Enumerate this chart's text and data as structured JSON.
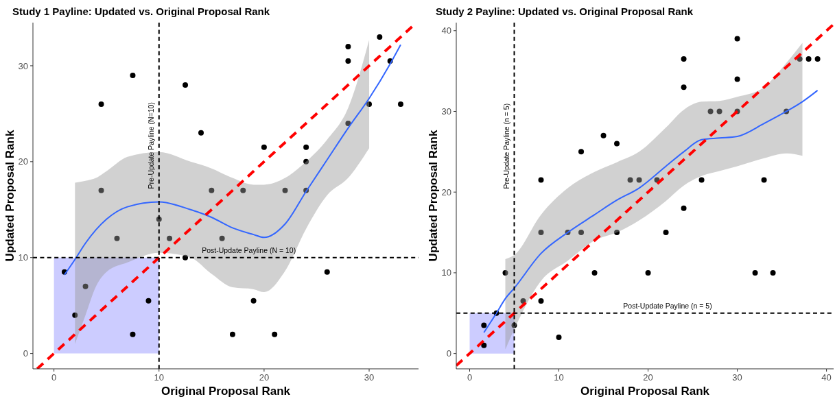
{
  "chart_data": [
    {
      "type": "scatter",
      "title": "Study 1 Payline: Updated vs. Original Proposal Rank",
      "xlabel": "Original Proposal Rank",
      "ylabel": "Updated Proposal Rank",
      "xlim": [
        -2,
        34.7
      ],
      "ylim": [
        -1.6,
        34.5
      ],
      "xticks": [
        0,
        10,
        20,
        30
      ],
      "yticks": [
        0,
        10,
        20,
        30
      ],
      "series": [
        {
          "type": "area",
          "color": "#ccccff",
          "x": [
            0,
            10
          ],
          "values": [
            10,
            10
          ]
        },
        {
          "marker": "circle",
          "color": "#000000",
          "x": [
            1,
            2,
            3,
            4.5,
            4.5,
            6,
            7.5,
            7.5,
            9,
            10,
            11,
            12.5,
            12.5,
            14,
            15,
            16,
            17,
            18,
            19,
            20,
            21,
            22,
            24,
            24,
            24,
            26,
            28,
            28,
            28,
            30,
            31,
            32,
            33
          ],
          "values": [
            8.5,
            4,
            7,
            26,
            17,
            12,
            29,
            2,
            5.5,
            14,
            12,
            28,
            10,
            23,
            17,
            12,
            2,
            17,
            5.5,
            21.5,
            2,
            17,
            21.5,
            20,
            17,
            8.5,
            32,
            30.5,
            24,
            26,
            33,
            30.5,
            26
          ]
        },
        {
          "type": "line",
          "color": "#3366ff",
          "line_style": "solid",
          "x": [
            1,
            2,
            3,
            4,
            5,
            7,
            10,
            13,
            15,
            17,
            19,
            20,
            22,
            24,
            26,
            28,
            30,
            32,
            33
          ],
          "values": [
            8.2,
            9.8,
            11.5,
            12.9,
            14,
            15.3,
            15.8,
            15,
            14.2,
            13.1,
            12.4,
            12.1,
            13.5,
            16.9,
            20.2,
            23.5,
            26.6,
            30.2,
            32.2
          ],
          "lower": [
            null,
            1,
            4,
            7,
            8.5,
            9.5,
            10.5,
            10,
            8.3,
            6.9,
            6.7,
            6.4,
            8.6,
            13,
            16.5,
            18.3,
            21.4,
            null,
            null
          ],
          "upper": [
            null,
            17.8,
            18,
            18.3,
            19,
            20.5,
            21,
            20,
            19.3,
            18.3,
            17.6,
            17.6,
            18.3,
            20,
            22.3,
            25.6,
            32.7,
            null,
            null
          ]
        },
        {
          "type": "line",
          "color": "#ff0000",
          "line_style": "dashed",
          "x": [
            -1.6,
            34.5
          ],
          "values": [
            -1.6,
            34.5
          ]
        }
      ],
      "ref_lines": [
        {
          "axis": "x",
          "value": 10,
          "label": "Pre-Update Payline (N=10)",
          "color": "#000000",
          "line_style": "dashed"
        },
        {
          "axis": "y",
          "value": 10,
          "label": "Post-Update Payline (N = 10)",
          "color": "#000000",
          "line_style": "dashed"
        }
      ]
    },
    {
      "type": "scatter",
      "title": "Study 2 Payline: Updated vs. Original Proposal Rank",
      "xlabel": "Original Proposal Rank",
      "ylabel": "Updated Proposal Rank",
      "xlim": [
        -1.5,
        40.8
      ],
      "ylim": [
        -1.9,
        41
      ],
      "xticks": [
        0,
        10,
        20,
        30,
        40
      ],
      "yticks": [
        0,
        10,
        20,
        30,
        40
      ],
      "series": [
        {
          "type": "area",
          "color": "#ccccff",
          "x": [
            0,
            5
          ],
          "values": [
            5,
            5
          ]
        },
        {
          "marker": "circle",
          "color": "#000000",
          "x": [
            1.6,
            1.6,
            3,
            4,
            5,
            6,
            8,
            8,
            8,
            10,
            11,
            12.5,
            12.5,
            14,
            15,
            16.5,
            16.5,
            18,
            19,
            21,
            20,
            22,
            24,
            24,
            24,
            26,
            27,
            28,
            30,
            30,
            30,
            32,
            33,
            34,
            35.5,
            37,
            38,
            39
          ],
          "values": [
            3.5,
            1,
            5,
            10,
            3.5,
            6.5,
            6.5,
            15,
            21.5,
            2,
            15,
            25,
            15,
            10,
            27,
            26,
            15,
            21.5,
            21.5,
            21.5,
            10,
            15,
            36.5,
            33,
            18,
            21.5,
            30,
            30,
            39,
            34,
            30,
            10,
            21.5,
            10,
            30,
            36.5,
            36.5,
            36.5
          ]
        },
        {
          "type": "line",
          "color": "#3366ff",
          "line_style": "solid",
          "x": [
            1.6,
            3,
            4,
            5,
            8,
            11,
            14,
            16.5,
            19,
            22,
            24,
            26,
            28,
            30,
            33,
            35.5,
            37.3,
            39
          ],
          "values": [
            2.6,
            5,
            6.8,
            8.1,
            12.4,
            15,
            17.2,
            19,
            20.5,
            23.2,
            25,
            26.5,
            26.7,
            26.9,
            28.5,
            30,
            31.2,
            32.6
          ],
          "lower": [
            null,
            null,
            0.5,
            3,
            9,
            11.5,
            14,
            15,
            16.5,
            18.9,
            20.8,
            22,
            22.6,
            23.2,
            24.2,
            24.8,
            24.5,
            null
          ],
          "upper": [
            null,
            null,
            11.7,
            12.2,
            17.2,
            20.5,
            22.5,
            23.7,
            25,
            28,
            30.2,
            31.2,
            31.3,
            31.8,
            33,
            36,
            38.5,
            null
          ]
        },
        {
          "type": "line",
          "color": "#ff0000",
          "line_style": "dashed",
          "x": [
            -1.5,
            40.8
          ],
          "values": [
            -1.5,
            40.8
          ]
        }
      ],
      "ref_lines": [
        {
          "axis": "x",
          "value": 5,
          "label": "Pre-Update Payline (n = 5)",
          "color": "#000000",
          "line_style": "dashed"
        },
        {
          "axis": "y",
          "value": 5,
          "label": "Post-Update Payline (n = 5)",
          "color": "#000000",
          "line_style": "dashed"
        }
      ]
    }
  ]
}
